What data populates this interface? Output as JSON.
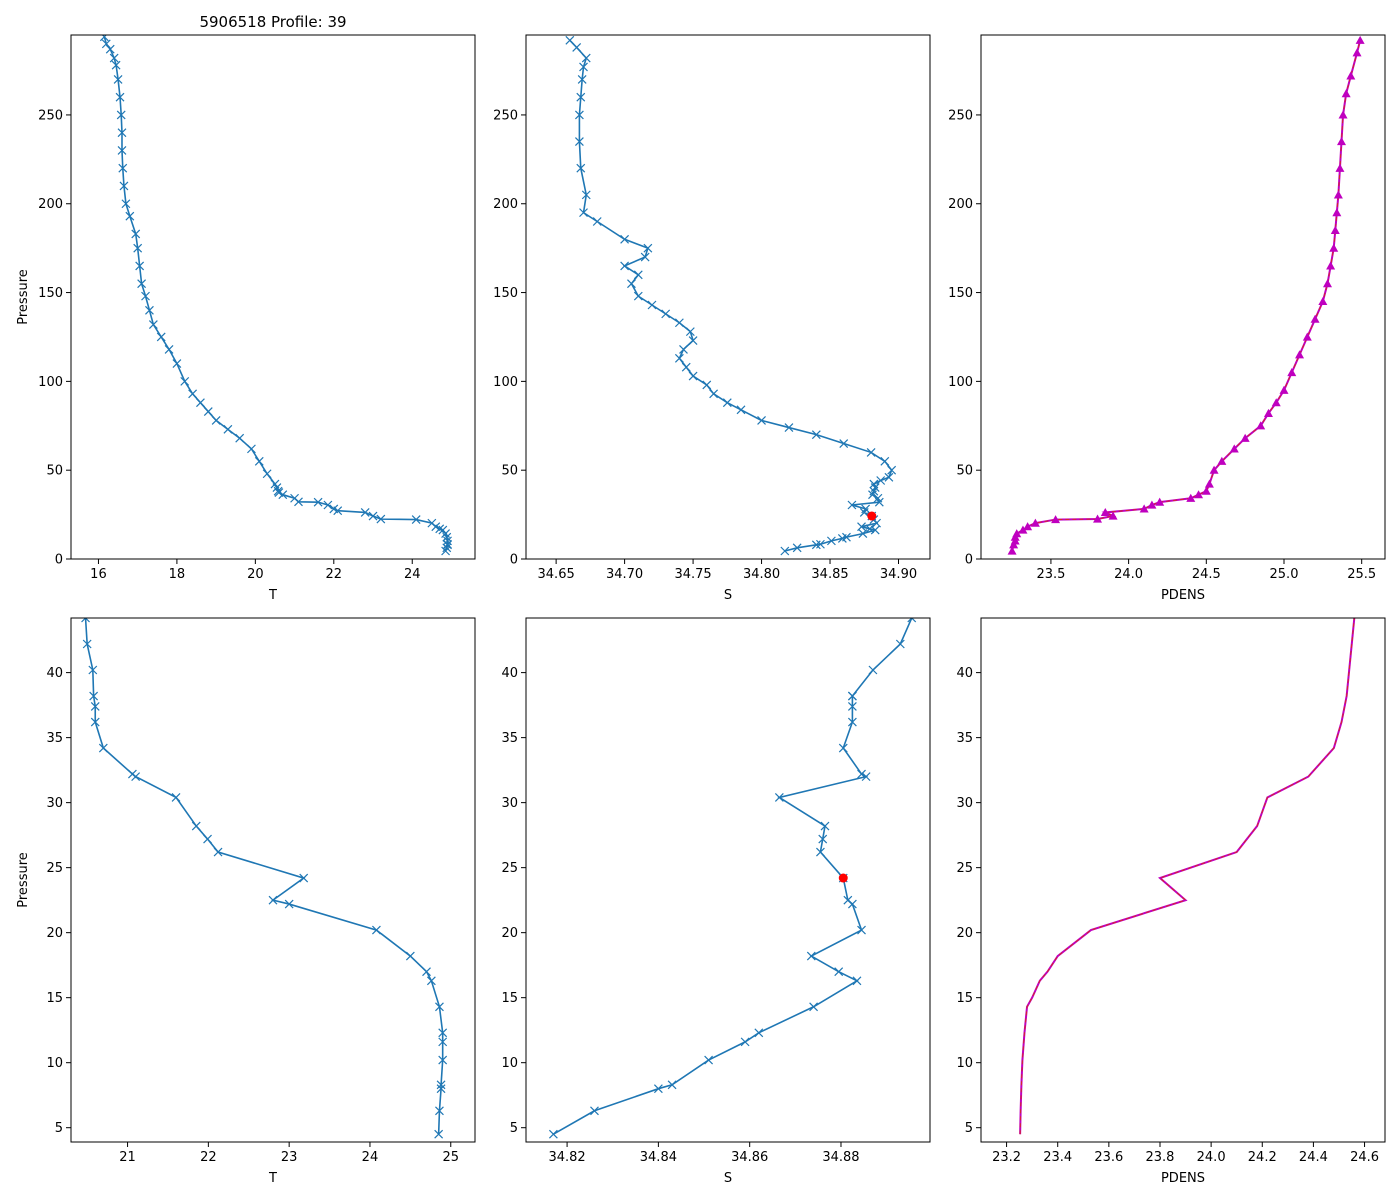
{
  "figure_title": "5906518 Profile: 39",
  "colors": {
    "line": "#1f77b4",
    "pdens": "#bf00bf",
    "pdens_dash": "#d62728",
    "marker_red": "#ff0000",
    "axis": "#000000"
  },
  "chart_data": [
    {
      "id": "top-temperature",
      "type": "line",
      "title": "5906518 Profile: 39",
      "xlabel": "T",
      "ylabel": "Pressure",
      "xlim": [
        15.3,
        25.6
      ],
      "ylim": [
        295,
        0
      ],
      "y_inverted": true,
      "xticks": [
        16,
        18,
        20,
        22,
        24
      ],
      "xtick_labels": [
        "16",
        "18",
        "20",
        "22",
        "24"
      ],
      "yticks": [
        0,
        50,
        100,
        150,
        200,
        250
      ],
      "ytick_labels": [
        "0",
        "50",
        "100",
        "150",
        "200",
        "250"
      ],
      "marker": "x",
      "series": [
        {
          "name": "T",
          "x": [
            24.85,
            24.88,
            24.9,
            24.9,
            24.9,
            24.88,
            24.85,
            24.78,
            24.7,
            24.6,
            24.5,
            24.1,
            23.2,
            23.0,
            22.8,
            22.1,
            22.0,
            21.85,
            21.6,
            21.1,
            21.0,
            20.7,
            20.6,
            20.58,
            20.55,
            20.5,
            20.3,
            20.1,
            19.9,
            19.6,
            19.3,
            19.0,
            18.8,
            18.6,
            18.4,
            18.2,
            18.0,
            17.8,
            17.6,
            17.4,
            17.3,
            17.2,
            17.1,
            17.05,
            17.0,
            16.95,
            16.8,
            16.7,
            16.65,
            16.62,
            16.6,
            16.6,
            16.58,
            16.55,
            16.5,
            16.45,
            16.4,
            16.3,
            16.2,
            16.15
          ],
          "y": [
            4.5,
            6.3,
            8.0,
            8.3,
            10.2,
            12.3,
            14.3,
            16.3,
            17.0,
            18.2,
            20.2,
            22.2,
            22.5,
            24.2,
            26.2,
            27.2,
            28.2,
            30.4,
            32.0,
            32.2,
            34.2,
            36.2,
            37.4,
            38.2,
            40.2,
            42.2,
            48,
            55,
            62,
            68,
            73,
            78,
            83,
            88,
            93,
            100,
            110,
            118,
            125,
            132,
            140,
            148,
            155,
            165,
            175,
            183,
            193,
            200,
            210,
            220,
            230,
            240,
            250,
            260,
            270,
            278,
            282,
            287,
            290,
            294
          ]
        }
      ]
    },
    {
      "id": "top-salinity",
      "type": "line",
      "title": "",
      "xlabel": "S",
      "ylabel": "",
      "xlim": [
        34.628,
        34.923
      ],
      "ylim": [
        295,
        0
      ],
      "y_inverted": true,
      "xticks": [
        34.65,
        34.7,
        34.75,
        34.8,
        34.85,
        34.9
      ],
      "xtick_labels": [
        "34.65",
        "34.70",
        "34.75",
        "34.80",
        "34.85",
        "34.90"
      ],
      "yticks": [
        0,
        50,
        100,
        150,
        200,
        250
      ],
      "ytick_labels": [
        "0",
        "50",
        "100",
        "150",
        "200",
        "250"
      ],
      "marker": "x",
      "highlight": {
        "x": 34.8805,
        "y": 24.2
      },
      "series": [
        {
          "name": "S",
          "x": [
            34.817,
            34.826,
            34.84,
            34.843,
            34.851,
            34.859,
            34.862,
            34.874,
            34.883,
            34.879,
            34.873,
            34.884,
            34.882,
            34.8805,
            34.875,
            34.876,
            34.866,
            34.886,
            34.885,
            34.881,
            34.882,
            34.883,
            34.882,
            34.887,
            34.893,
            34.895,
            34.89,
            34.88,
            34.86,
            34.84,
            34.82,
            34.8,
            34.785,
            34.775,
            34.765,
            34.76,
            34.75,
            34.745,
            34.74,
            34.743,
            34.75,
            34.748,
            34.74,
            34.73,
            34.72,
            34.71,
            34.705,
            34.71,
            34.7,
            34.715,
            34.717,
            34.7,
            34.68,
            34.67,
            34.672,
            34.668,
            34.667,
            34.667,
            34.668,
            34.669,
            34.67,
            34.672,
            34.665,
            34.66
          ],
          "y": [
            4.5,
            6.3,
            8.0,
            8.3,
            10.2,
            11.6,
            12.3,
            14.3,
            16.3,
            17.0,
            18.2,
            20.2,
            22.2,
            24.2,
            26.2,
            28.2,
            30.4,
            32.0,
            34.2,
            36.2,
            38.2,
            40.2,
            42.2,
            44.2,
            46,
            50,
            55,
            60,
            65,
            70,
            74,
            78,
            84,
            88,
            93,
            98,
            103,
            108,
            113,
            118,
            123,
            128,
            133,
            138,
            143,
            148,
            155,
            160,
            165,
            170,
            175,
            180,
            190,
            195,
            205,
            220,
            235,
            250,
            260,
            270,
            277,
            282,
            288,
            292
          ]
        }
      ]
    },
    {
      "id": "top-pdens",
      "type": "line",
      "title": "",
      "xlabel": "PDENS",
      "ylabel": "",
      "xlim": [
        23.05,
        25.65
      ],
      "ylim": [
        295,
        0
      ],
      "y_inverted": true,
      "xticks": [
        23.5,
        24.0,
        24.5,
        25.0,
        25.5
      ],
      "xtick_labels": [
        "23.5",
        "24.0",
        "24.5",
        "25.0",
        "25.5"
      ],
      "yticks": [
        0,
        50,
        100,
        150,
        200,
        250
      ],
      "ytick_labels": [
        "0",
        "50",
        "100",
        "150",
        "200",
        "250"
      ],
      "marker": "triangle",
      "series": [
        {
          "name": "PDENS",
          "x": [
            23.25,
            23.26,
            23.27,
            23.27,
            23.28,
            23.32,
            23.35,
            23.4,
            23.53,
            23.8,
            23.9,
            23.85,
            24.1,
            24.15,
            24.2,
            24.4,
            24.45,
            24.5,
            24.52,
            24.55,
            24.6,
            24.68,
            24.75,
            24.85,
            24.9,
            24.95,
            25.0,
            25.05,
            25.1,
            25.15,
            25.2,
            25.25,
            25.28,
            25.3,
            25.32,
            25.33,
            25.34,
            25.35,
            25.36,
            25.37,
            25.38,
            25.4,
            25.43,
            25.47,
            25.49
          ],
          "y": [
            4.5,
            8.0,
            10.2,
            12.3,
            14.3,
            16.3,
            18.2,
            20.2,
            22.2,
            22.5,
            24.2,
            26.2,
            28.2,
            30.4,
            32.0,
            34.2,
            36.2,
            38.2,
            42.2,
            50,
            55,
            62,
            68,
            75,
            82,
            88,
            95,
            105,
            115,
            125,
            135,
            145,
            155,
            165,
            175,
            185,
            195,
            205,
            220,
            235,
            250,
            262,
            272,
            285,
            292
          ]
        }
      ]
    },
    {
      "id": "bottom-temperature",
      "type": "line",
      "title": "",
      "xlabel": "T",
      "ylabel": "Pressure",
      "xlim": [
        20.3,
        25.3
      ],
      "ylim": [
        44.2,
        3.9
      ],
      "y_inverted": true,
      "xticks": [
        21,
        22,
        23,
        24,
        25
      ],
      "xtick_labels": [
        "21",
        "22",
        "23",
        "24",
        "25"
      ],
      "yticks": [
        5,
        10,
        15,
        20,
        25,
        30,
        35,
        40
      ],
      "ytick_labels": [
        "5",
        "10",
        "15",
        "20",
        "25",
        "30",
        "35",
        "40"
      ],
      "marker": "x",
      "series": [
        {
          "name": "T",
          "x": [
            24.85,
            24.86,
            24.88,
            24.88,
            24.9,
            24.9,
            24.9,
            24.86,
            24.76,
            24.7,
            24.5,
            24.08,
            23.0,
            22.8,
            23.18,
            22.12,
            21.99,
            21.85,
            21.6,
            21.1,
            21.06,
            20.7,
            20.6,
            20.6,
            20.58,
            20.57,
            20.5,
            20.48
          ],
          "y": [
            4.5,
            6.3,
            8.0,
            8.3,
            10.2,
            11.6,
            12.3,
            14.3,
            16.3,
            17.0,
            18.2,
            20.2,
            22.2,
            22.5,
            24.2,
            26.2,
            27.2,
            28.2,
            30.4,
            32.0,
            32.2,
            34.2,
            36.2,
            37.4,
            38.2,
            40.2,
            42.2,
            44.2
          ]
        }
      ]
    },
    {
      "id": "bottom-salinity",
      "type": "line",
      "title": "",
      "xlabel": "S",
      "ylabel": "",
      "xlim": [
        34.811,
        34.8995
      ],
      "ylim": [
        44.2,
        3.9
      ],
      "y_inverted": true,
      "xticks": [
        34.82,
        34.84,
        34.86,
        34.88
      ],
      "xtick_labels": [
        "34.82",
        "34.84",
        "34.86",
        "34.88"
      ],
      "yticks": [
        5,
        10,
        15,
        20,
        25,
        30,
        35,
        40
      ],
      "ytick_labels": [
        "5",
        "10",
        "15",
        "20",
        "25",
        "30",
        "35",
        "40"
      ],
      "marker": "x",
      "highlight": {
        "x": 34.8805,
        "y": 24.2
      },
      "series": [
        {
          "name": "S",
          "x": [
            34.817,
            34.826,
            34.84,
            34.843,
            34.851,
            34.859,
            34.862,
            34.874,
            34.8835,
            34.8795,
            34.8735,
            34.8845,
            34.8825,
            34.8815,
            34.8805,
            34.8755,
            34.876,
            34.8765,
            34.8665,
            34.8855,
            34.8845,
            34.8805,
            34.8825,
            34.8825,
            34.8825,
            34.8825,
            34.887,
            34.893,
            34.8955
          ],
          "y": [
            4.5,
            6.3,
            8.0,
            8.3,
            10.2,
            11.6,
            12.3,
            14.3,
            16.3,
            17.0,
            18.2,
            20.2,
            22.2,
            22.5,
            24.2,
            26.2,
            27.2,
            28.2,
            30.4,
            32.0,
            32.2,
            34.2,
            36.2,
            37.4,
            38.2,
            38.2,
            40.2,
            42.2,
            44.2
          ]
        }
      ]
    },
    {
      "id": "bottom-pdens",
      "type": "line",
      "title": "",
      "xlabel": "PDENS",
      "ylabel": "",
      "xlim": [
        23.1,
        24.68
      ],
      "ylim": [
        44.2,
        3.9
      ],
      "y_inverted": true,
      "xticks": [
        23.2,
        23.4,
        23.6,
        23.8,
        24.0,
        24.2,
        24.4,
        24.6
      ],
      "xtick_labels": [
        "23.2",
        "23.4",
        "23.6",
        "23.8",
        "24.0",
        "24.2",
        "24.4",
        "24.6"
      ],
      "yticks": [
        5,
        10,
        15,
        20,
        25,
        30,
        35,
        40
      ],
      "ytick_labels": [
        "5",
        "10",
        "15",
        "20",
        "25",
        "30",
        "35",
        "40"
      ],
      "marker": "none",
      "series": [
        {
          "name": "PDENS",
          "x": [
            23.253,
            23.255,
            23.258,
            23.262,
            23.27,
            23.28,
            23.3,
            23.33,
            23.36,
            23.4,
            23.53,
            23.9,
            23.8,
            24.1,
            24.18,
            24.22,
            24.38,
            24.48,
            24.51,
            24.53,
            24.54,
            24.56
          ],
          "y": [
            4.5,
            6.3,
            8.3,
            10.2,
            12.3,
            14.3,
            15.0,
            16.3,
            17.0,
            18.2,
            20.2,
            22.5,
            24.2,
            26.2,
            28.2,
            30.4,
            32.0,
            34.2,
            36.2,
            38.2,
            40.2,
            44.2
          ]
        }
      ]
    }
  ]
}
